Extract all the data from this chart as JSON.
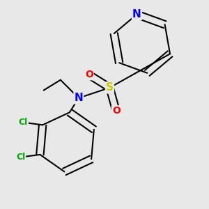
{
  "bg_color": "#e8e8e8",
  "atom_colors": {
    "N": "#0000ff",
    "S": "#cccc00",
    "O": "#ff0000",
    "Cl": "#00aa00",
    "C": "#000000"
  },
  "bond_color": "#000000",
  "bond_width": 1.5,
  "font_sizes": {
    "N": 11,
    "S": 11,
    "O": 10,
    "Cl": 9,
    "C": 9
  }
}
